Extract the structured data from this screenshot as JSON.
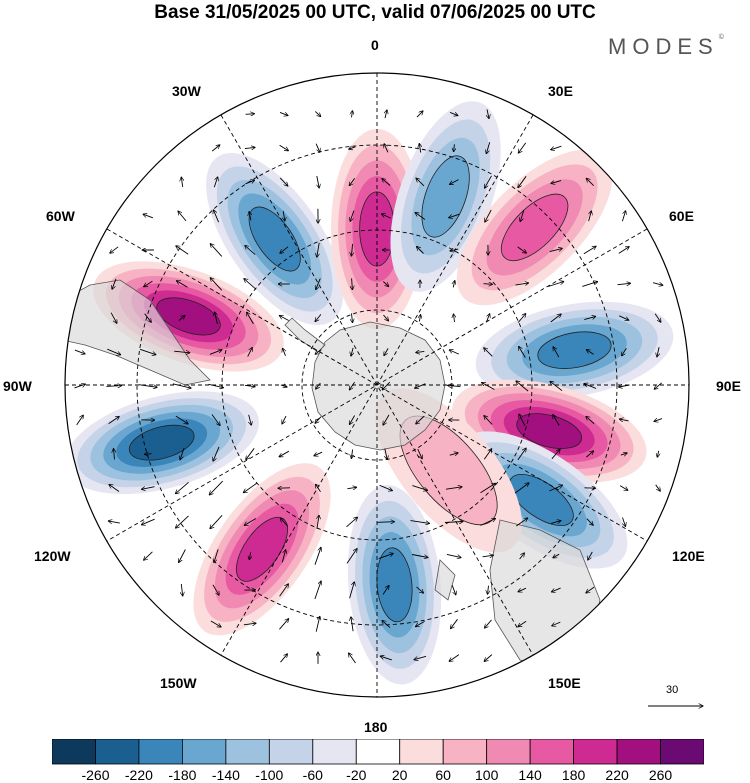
{
  "title": "Base 31/05/2025 00 UTC, valid 07/06/2025 00 UTC",
  "brand": "MODES",
  "brand_mark": "©",
  "longitude_labels": {
    "lon_0": "0",
    "lon_30e": "30E",
    "lon_60e": "60E",
    "lon_90e": "90E",
    "lon_120e": "120E",
    "lon_150e": "150E",
    "lon_180": "180",
    "lon_150w": "150W",
    "lon_120w": "120W",
    "lon_90w": "90W",
    "lon_60w": "60W",
    "lon_30w": "30W"
  },
  "vector_scale_label": "30",
  "colorbar": {
    "colors": [
      "#0d3a5c",
      "#1a5f8f",
      "#3a86bb",
      "#6aa7d0",
      "#9dc2df",
      "#c5d3e8",
      "#e6e6f2",
      "#ffffff",
      "#fbdddd",
      "#f7b3c4",
      "#f08ab2",
      "#e75aa3",
      "#cd2a92",
      "#a2107f",
      "#6c0a74"
    ],
    "ticks": [
      "-260",
      "-220",
      "-180",
      "-140",
      "-100",
      "-60",
      "-20",
      "20",
      "60",
      "100",
      "140",
      "180",
      "220",
      "260"
    ]
  },
  "chart_data": {
    "type": "heatmap",
    "projection": "south-polar-stereographic",
    "field": "geopotential height anomaly with wind vectors",
    "levels": [
      -260,
      -220,
      -180,
      -140,
      -100,
      -60,
      -20,
      20,
      60,
      100,
      140,
      180,
      220,
      260
    ],
    "anomaly_centers": [
      {
        "lon": -35,
        "lat": -50,
        "value": -200
      },
      {
        "lon": 0,
        "lat": -55,
        "value": 200
      },
      {
        "lon": 20,
        "lat": -45,
        "value": -160
      },
      {
        "lon": 45,
        "lat": -40,
        "value": 160
      },
      {
        "lon": 80,
        "lat": -45,
        "value": -220
      },
      {
        "lon": 105,
        "lat": -50,
        "value": 260
      },
      {
        "lon": 125,
        "lat": -45,
        "value": -200
      },
      {
        "lon": 140,
        "lat": -65,
        "value": 80
      },
      {
        "lon": 175,
        "lat": -45,
        "value": -200
      },
      {
        "lon": -145,
        "lat": -45,
        "value": 200
      },
      {
        "lon": -105,
        "lat": -40,
        "value": -240
      },
      {
        "lon": -70,
        "lat": -45,
        "value": 240
      }
    ]
  }
}
